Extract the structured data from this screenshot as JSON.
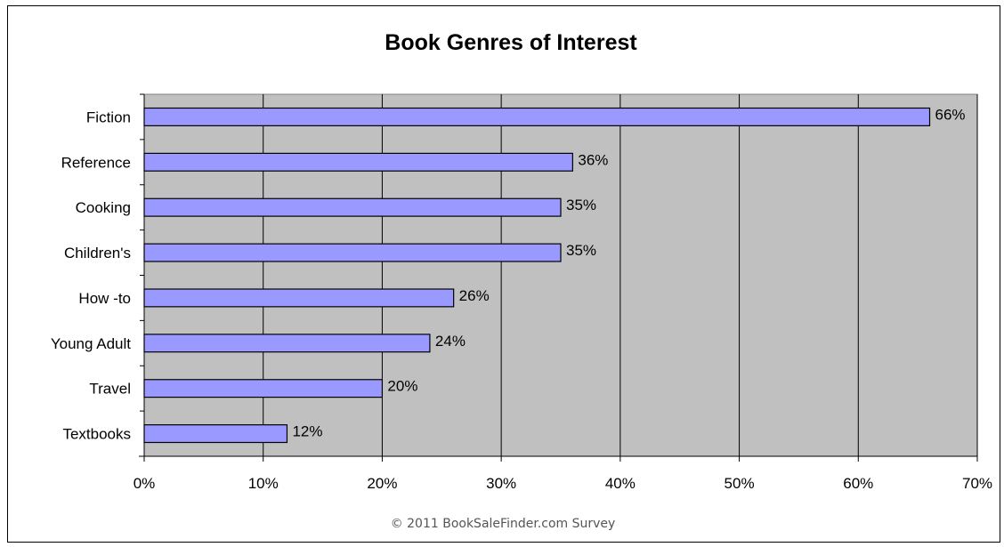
{
  "chart_data": {
    "type": "bar",
    "orientation": "horizontal",
    "title": "Book Genres of Interest",
    "categories": [
      "Fiction",
      "Reference",
      "Cooking",
      "Children's",
      "How -to",
      "Young Adult",
      "Travel",
      "Textbooks"
    ],
    "values": [
      66,
      36,
      35,
      35,
      26,
      24,
      20,
      12
    ],
    "value_labels": [
      "66%",
      "36%",
      "35%",
      "35%",
      "26%",
      "24%",
      "20%",
      "12%"
    ],
    "xlim": [
      0,
      70
    ],
    "x_ticks": [
      0,
      10,
      20,
      30,
      40,
      50,
      60,
      70
    ],
    "x_tick_labels": [
      "0%",
      "10%",
      "20%",
      "30%",
      "40%",
      "50%",
      "60%",
      "70%"
    ],
    "grid": "vertical",
    "bar_color": "#9999FF",
    "plot_background": "#C0C0C0",
    "xlabel": "",
    "ylabel": ""
  },
  "footer": {
    "source": "© 2011 BookSaleFinder.com Survey"
  }
}
